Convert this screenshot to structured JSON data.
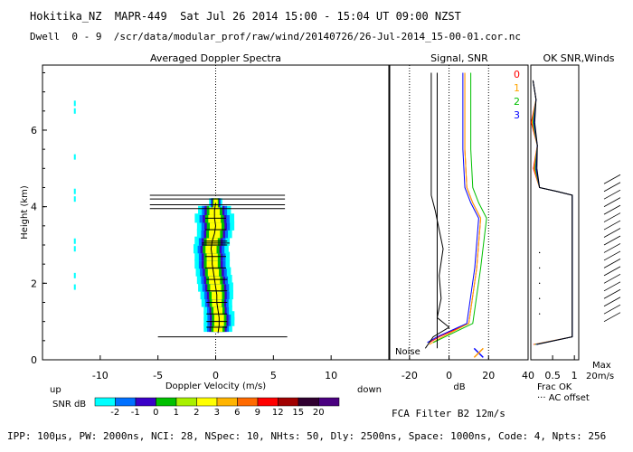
{
  "header": {
    "line1": "Hokitika_NZ  MAPR-449  Sat Jul 26 2014 15:00 - 15:04 UT 09:00 NZST",
    "line2": "Dwell  0 - 9  /scr/data/modular_prof/raw/wind/20140726/26-Jul-2014_15-00-01.cor.nc"
  },
  "footer": {
    "params": "IPP: 100µs, PW: 2000ns, NCI: 28, NSpec: 10, NHts: 50, Dly: 2500ns, Space: 1000ns, Code: 4, Npts: 256",
    "fca": "FCA Filter B2 12m/s"
  },
  "snr_scale": {
    "label": "SNR dB",
    "colors": [
      "#00ffff",
      "#0070ff",
      "#3a00c8",
      "#00c000",
      "#a8f000",
      "#ffff00",
      "#ffb400",
      "#ff6a00",
      "#ff0000",
      "#a00000",
      "#300030",
      "#4a0080"
    ],
    "ticks": [
      "-2",
      "-1",
      "0",
      "1",
      "2",
      "3",
      "6",
      "9",
      "12",
      "15",
      "20"
    ]
  },
  "chart_data": [
    {
      "panel": "spectra",
      "type": "heatmap",
      "title": "Averaged Doppler Spectra",
      "xlabel": "Doppler Velocity (m/s)",
      "ylabel": "Height (km)",
      "xlim": [
        -15,
        15
      ],
      "ylim": [
        0,
        7.7
      ],
      "x_ticks": [
        -10,
        -5,
        0,
        5,
        10
      ],
      "y_ticks": [
        0,
        2,
        4,
        6
      ],
      "left_note": "up",
      "right_note": "down",
      "spectra": [
        {
          "h": 0.85,
          "c": 0.2,
          "w": 1.3
        },
        {
          "h": 1.0,
          "c": 0.3,
          "w": 1.4
        },
        {
          "h": 1.15,
          "c": 0.3,
          "w": 1.4
        },
        {
          "h": 1.3,
          "c": 0.2,
          "w": 1.3
        },
        {
          "h": 1.5,
          "c": 0.1,
          "w": 1.4
        },
        {
          "h": 1.7,
          "c": 0.1,
          "w": 1.5
        },
        {
          "h": 1.9,
          "c": 0.0,
          "w": 1.6
        },
        {
          "h": 2.1,
          "c": -0.1,
          "w": 1.6
        },
        {
          "h": 2.3,
          "c": -0.2,
          "w": 1.6
        },
        {
          "h": 2.5,
          "c": -0.3,
          "w": 1.6
        },
        {
          "h": 2.7,
          "c": -0.3,
          "w": 1.6
        },
        {
          "h": 2.9,
          "c": -0.4,
          "w": 1.6
        },
        {
          "h": 3.1,
          "c": -0.3,
          "w": 1.6
        },
        {
          "h": 3.3,
          "c": -0.1,
          "w": 1.6
        },
        {
          "h": 3.5,
          "c": 0.0,
          "w": 1.7
        },
        {
          "h": 3.7,
          "c": -0.1,
          "w": 1.8
        },
        {
          "h": 3.9,
          "c": -0.1,
          "w": 1.5
        },
        {
          "h": 4.1,
          "c": 0.0,
          "w": 0.6
        }
      ],
      "error_bars": [
        {
          "h": 0.6,
          "l": -5,
          "r": 6.2
        },
        {
          "h": 0.85,
          "l": -0.8,
          "r": 1.0
        },
        {
          "h": 1.0,
          "l": -0.8,
          "r": 1.0
        },
        {
          "h": 1.2,
          "l": -0.8,
          "r": 1.0
        },
        {
          "h": 1.5,
          "l": -0.8,
          "r": 1.0
        },
        {
          "h": 1.8,
          "l": -0.8,
          "r": 1.0
        },
        {
          "h": 2.1,
          "l": -0.8,
          "r": 1.0
        },
        {
          "h": 2.4,
          "l": -0.9,
          "r": 0.9
        },
        {
          "h": 2.7,
          "l": -0.9,
          "r": 0.9
        },
        {
          "h": 3.0,
          "l": -1.2,
          "r": 1.0
        },
        {
          "h": 3.05,
          "l": -1.2,
          "r": 1.2
        },
        {
          "h": 3.1,
          "l": -1.0,
          "r": 1.0
        },
        {
          "h": 3.4,
          "l": -0.9,
          "r": 0.9
        },
        {
          "h": 3.7,
          "l": -0.9,
          "r": 0.9
        },
        {
          "h": 3.95,
          "l": -5.7,
          "r": 6.0
        },
        {
          "h": 4.05,
          "l": -5.7,
          "r": 6.0
        },
        {
          "h": 4.2,
          "l": -5.7,
          "r": 6.0
        },
        {
          "h": 4.3,
          "l": -5.7,
          "r": 6.0
        }
      ],
      "mean_velocity": [
        [
          0.7,
          0.2
        ],
        [
          0.9,
          0.3
        ],
        [
          1.1,
          0.3
        ],
        [
          1.3,
          0.2
        ],
        [
          1.5,
          0.1
        ],
        [
          1.7,
          0.1
        ],
        [
          1.9,
          0.0
        ],
        [
          2.1,
          -0.1
        ],
        [
          2.3,
          -0.2
        ],
        [
          2.5,
          -0.3
        ],
        [
          2.7,
          -0.3
        ],
        [
          2.9,
          -0.4
        ],
        [
          3.1,
          -0.3
        ],
        [
          3.3,
          -0.1
        ],
        [
          3.5,
          0.0
        ],
        [
          3.7,
          -0.1
        ],
        [
          3.9,
          -0.1
        ],
        [
          4.1,
          0.0
        ]
      ],
      "isolated_points": [
        {
          "x": -12.2,
          "h": 6.7
        },
        {
          "x": -12.2,
          "h": 6.5
        },
        {
          "x": -12.2,
          "h": 5.3
        },
        {
          "x": -12.2,
          "h": 4.4
        },
        {
          "x": -12.2,
          "h": 4.2
        },
        {
          "x": -12.2,
          "h": 3.1
        },
        {
          "x": -12.2,
          "h": 2.9
        },
        {
          "x": -12.2,
          "h": 2.2
        },
        {
          "x": -12.2,
          "h": 1.9
        }
      ]
    },
    {
      "panel": "signal_snr",
      "type": "line",
      "title": "Signal, SNR",
      "xlabel": "dB",
      "xlim": [
        -30,
        40
      ],
      "ylim": [
        0,
        7.7
      ],
      "x_ticks": [
        -20,
        0,
        20,
        40
      ],
      "dotted_x": [
        -20,
        0,
        20
      ],
      "noise_label": "Noise",
      "series": [
        {
          "name": "0",
          "color": "#ff0000",
          "points": [
            [
              -10,
              0.45
            ],
            [
              -5,
              0.6
            ],
            [
              10,
              0.95
            ],
            [
              14,
              2.4
            ],
            [
              16,
              3.7
            ],
            [
              12,
              4.1
            ],
            [
              9,
              4.5
            ],
            [
              8,
              5.5
            ],
            [
              8,
              7.5
            ]
          ]
        },
        {
          "name": "1",
          "color": "#ffa500",
          "points": [
            [
              -10,
              0.4
            ],
            [
              -5,
              0.55
            ],
            [
              10,
              0.95
            ],
            [
              14,
              2.4
            ],
            [
              16,
              3.7
            ],
            [
              12,
              4.1
            ],
            [
              9,
              4.5
            ],
            [
              8,
              5.5
            ],
            [
              8,
              7.5
            ]
          ]
        },
        {
          "name": "2",
          "color": "#00c000",
          "points": [
            [
              -8,
              0.45
            ],
            [
              -2,
              0.6
            ],
            [
              12,
              0.95
            ],
            [
              16,
              2.4
            ],
            [
              19,
              3.7
            ],
            [
              15,
              4.1
            ],
            [
              12,
              4.5
            ],
            [
              11,
              5.5
            ],
            [
              11,
              7.5
            ]
          ]
        },
        {
          "name": "3",
          "color": "#0000ff",
          "points": [
            [
              -11,
              0.45
            ],
            [
              -6,
              0.6
            ],
            [
              9,
              0.95
            ],
            [
              13,
              2.4
            ],
            [
              15,
              3.7
            ],
            [
              11,
              4.1
            ],
            [
              8,
              4.5
            ],
            [
              7,
              5.5
            ],
            [
              7,
              7.5
            ]
          ]
        },
        {
          "name": "signal",
          "color": "#000000",
          "points": [
            [
              -12,
              0.3
            ],
            [
              -8,
              0.6
            ],
            [
              0,
              0.85
            ],
            [
              -6,
              1.1
            ],
            [
              -4,
              1.6
            ],
            [
              -5,
              2.2
            ],
            [
              -3,
              2.9
            ],
            [
              -5,
              3.4
            ],
            [
              -7,
              3.9
            ],
            [
              -9,
              4.3
            ],
            [
              -9,
              5.5
            ],
            [
              -9,
              7.5
            ]
          ]
        },
        {
          "name": "noise",
          "color": "#000000",
          "points": [
            [
              -6,
              0.3
            ],
            [
              -6,
              7.5
            ]
          ]
        }
      ],
      "markers": [
        {
          "x": 15,
          "h": 0.18,
          "symbol": "x"
        }
      ]
    },
    {
      "panel": "ok_snr_winds",
      "type": "line",
      "title": "OK SNR,Winds",
      "xlabel": "Frac OK",
      "xlabel2": "AC offset",
      "xlim": [
        0,
        1.1
      ],
      "ylim": [
        0,
        7.7
      ],
      "x_ticks": [
        0.5,
        1
      ],
      "legend": [
        "0",
        "1",
        "2",
        "3"
      ],
      "legend_colors": [
        "#ff0000",
        "#ffa500",
        "#00c000",
        "#0000ff"
      ],
      "max_label": "Max\n20m/s"
    }
  ]
}
